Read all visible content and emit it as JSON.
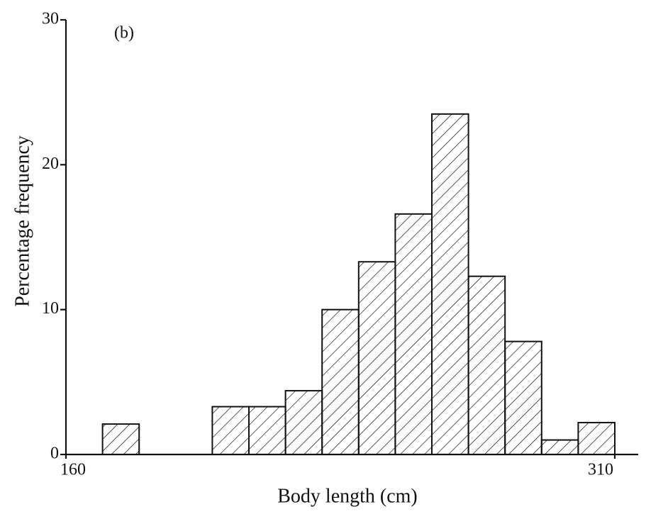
{
  "chart_data": {
    "type": "histogram",
    "annotation": "(b)",
    "x_label": "Body length (cm)",
    "y_label": "Percentage frequency",
    "bins": [
      170,
      180,
      190,
      200,
      210,
      220,
      230,
      240,
      250,
      260,
      270,
      280,
      290,
      300,
      310
    ],
    "values": [
      2.1,
      0,
      0,
      3.3,
      3.3,
      4.4,
      10,
      13.3,
      16.6,
      23.5,
      12.3,
      7.8,
      1,
      2.2
    ],
    "color": "#111111",
    "hatch": true,
    "xlim": [
      160,
      310
    ],
    "xticks": [
      160,
      310
    ],
    "ylim": [
      0,
      30
    ],
    "yticks": [
      0,
      10,
      20,
      30
    ],
    "grid": false
  }
}
